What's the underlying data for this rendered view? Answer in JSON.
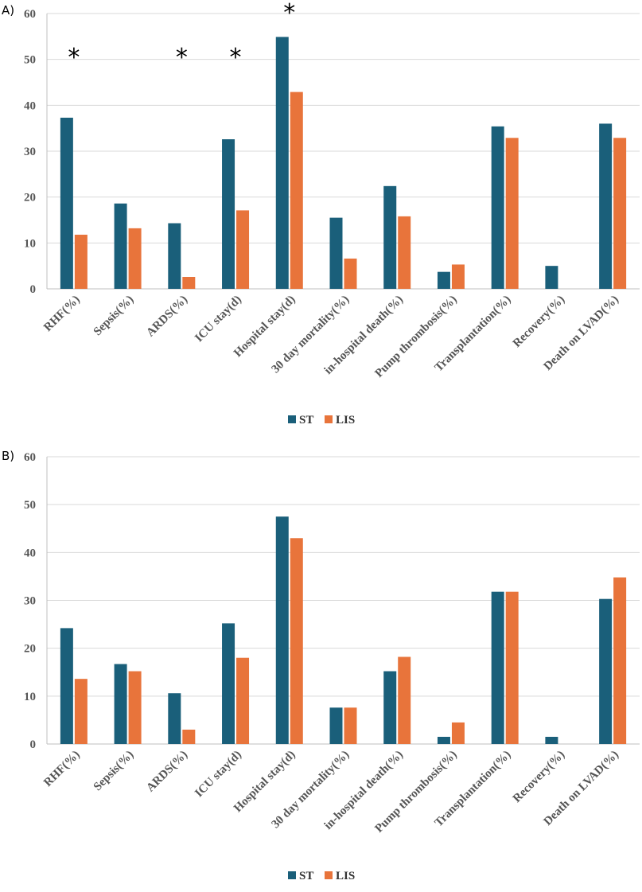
{
  "chart_data": [
    {
      "panel_label": "A)",
      "type": "bar",
      "categories": [
        "RHF(%)",
        "Sepsis(%)",
        "ARDS(%)",
        "ICU stay(d)",
        "Hospital stay(d)",
        "30 day mortality(%)",
        "in-hospital death(%)",
        "Pump thrombosis(%)",
        "Transplantation(%)",
        "Recovery(%)",
        "Death on LVAD(%)"
      ],
      "series": [
        {
          "name": "ST",
          "color": "#1a5f7a",
          "values": [
            37.3,
            18.6,
            14.3,
            32.6,
            54.9,
            15.5,
            22.4,
            3.7,
            35.4,
            5.0,
            36.0
          ]
        },
        {
          "name": "LIS",
          "color": "#e8743b",
          "values": [
            11.8,
            13.2,
            2.6,
            17.1,
            42.9,
            6.6,
            15.8,
            5.3,
            32.9,
            0,
            32.9
          ]
        }
      ],
      "significance": [
        {
          "category": "RHF(%)",
          "marker": "*"
        },
        {
          "category": "ARDS(%)",
          "marker": "*"
        },
        {
          "category": "ICU stay(d)",
          "marker": "*"
        },
        {
          "category": "Hospital stay(d)",
          "marker": "*"
        }
      ],
      "yticks": [
        0,
        10,
        20,
        30,
        40,
        50,
        60
      ],
      "ylim": [
        0,
        60
      ],
      "grid": true,
      "legend": "bottom-center"
    },
    {
      "panel_label": "B)",
      "type": "bar",
      "categories": [
        "RHF(%)",
        "Sepsis(%)",
        "ARDS(%)",
        "ICU stay(d)",
        "Hospital stay(d)",
        "30 day mortality(%)",
        "in-hospital death(%)",
        "Pump thrombosis(%)",
        "Transplantation(%)",
        "Recovery(%)",
        "Death on LVAD(%)"
      ],
      "series": [
        {
          "name": "ST",
          "color": "#1a5f7a",
          "values": [
            24.2,
            16.7,
            10.6,
            25.2,
            47.5,
            7.6,
            15.2,
            1.5,
            31.8,
            1.5,
            30.3
          ]
        },
        {
          "name": "LIS",
          "color": "#e8743b",
          "values": [
            13.6,
            15.2,
            3.0,
            18.0,
            43.0,
            7.6,
            18.2,
            4.5,
            31.8,
            0,
            34.8
          ]
        }
      ],
      "significance": [],
      "yticks": [
        0,
        10,
        20,
        30,
        40,
        50,
        60
      ],
      "ylim": [
        0,
        60
      ],
      "grid": true,
      "legend": "bottom-center"
    }
  ]
}
